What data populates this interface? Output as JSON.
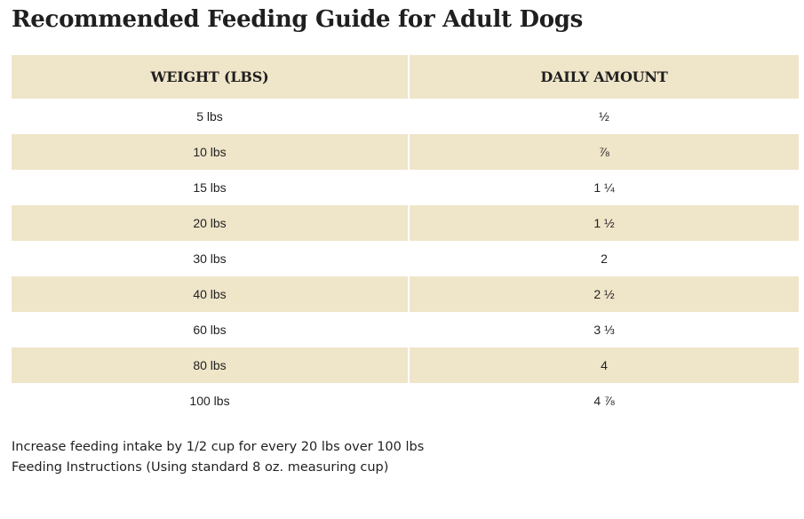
{
  "page": {
    "title": "Recommended Feeding Guide for Adult Dogs"
  },
  "table": {
    "headers": {
      "weight": "WEIGHT (LBS)",
      "amount": "DAILY AMOUNT"
    },
    "rows": [
      {
        "weight": "5 lbs",
        "amount": "½"
      },
      {
        "weight": "10 lbs",
        "amount": "⅞"
      },
      {
        "weight": "15 lbs",
        "amount": "1 ¼"
      },
      {
        "weight": "20 lbs",
        "amount": "1 ½"
      },
      {
        "weight": "30 lbs",
        "amount": "2"
      },
      {
        "weight": "40 lbs",
        "amount": "2 ½"
      },
      {
        "weight": "60 lbs",
        "amount": "3 ⅓"
      },
      {
        "weight": "80 lbs",
        "amount": "4"
      },
      {
        "weight": "100 lbs",
        "amount": "4 ⅞"
      }
    ]
  },
  "notes": {
    "increase_note": "Increase feeding intake by 1/2 cup for every 20 lbs over 100 lbs",
    "instructions_note": "Feeding Instructions (Using standard 8 oz. measuring cup)"
  },
  "colors": {
    "header_bg": "#efe5c9",
    "striped_row_bg": "#efe5c9",
    "text": "#1f1f1f"
  }
}
